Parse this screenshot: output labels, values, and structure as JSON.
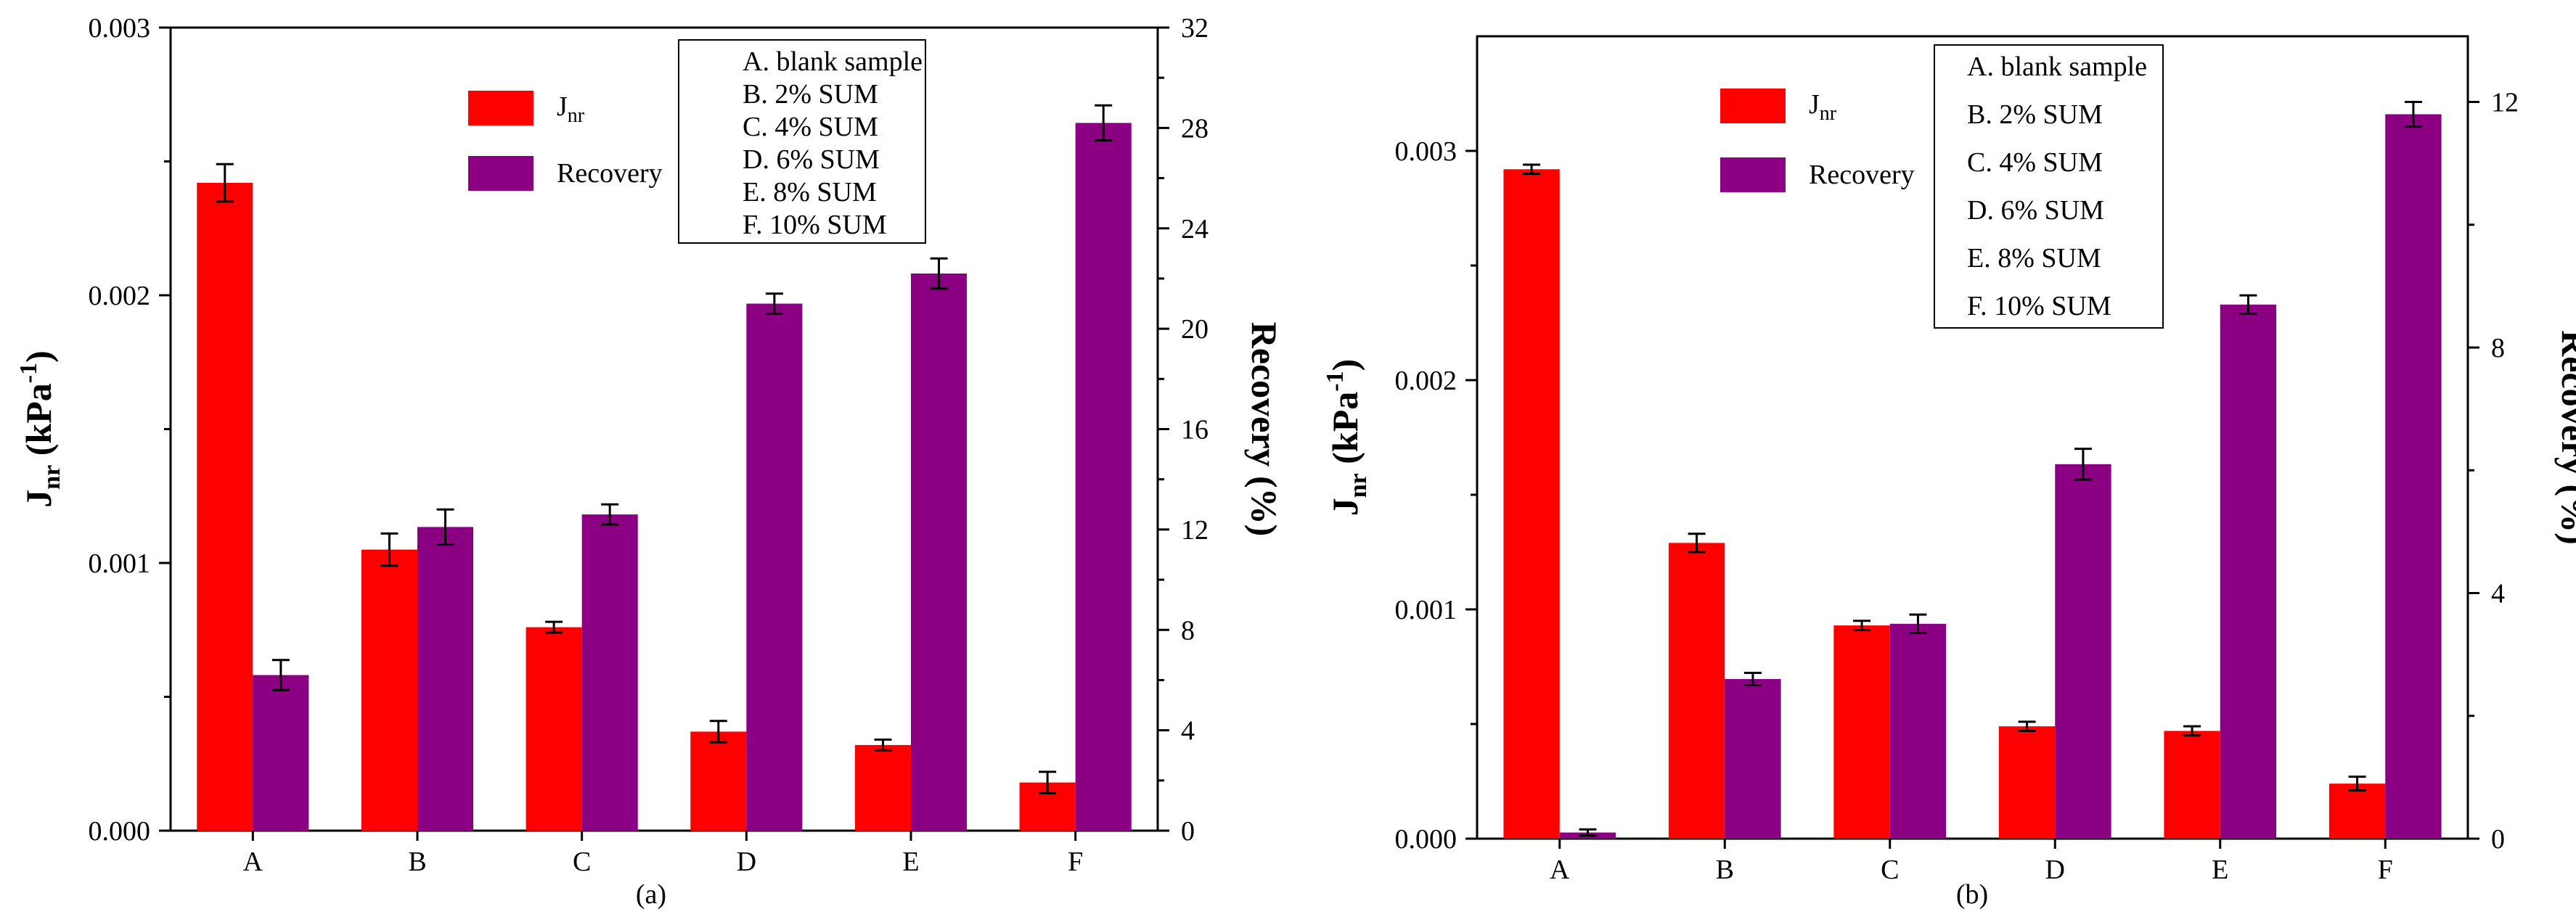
{
  "colors": {
    "jnr": "#ff0000",
    "recovery": "#8b0082",
    "axis": "#000000",
    "background": "#ffffff"
  },
  "series_labels": {
    "jnr_base": "J",
    "jnr_sub": "nr",
    "recovery": "Recovery"
  },
  "chart_data": [
    {
      "type": "bar",
      "caption": "(a)",
      "categories": [
        "A",
        "B",
        "C",
        "D",
        "E",
        "F"
      ],
      "category_key": [
        "A. blank sample",
        "B. 2%  SUM",
        "C. 4% SUM",
        "D. 6% SUM",
        "E. 8% SUM",
        "F. 10% SUM"
      ],
      "ylabel_left": {
        "base": "J",
        "sub": "nr",
        "mid": " (kPa",
        "sup": "-1",
        "end": ")"
      },
      "ylabel_right": "Recovery (%)",
      "ylim_left": [
        0,
        0.003
      ],
      "ylim_right": [
        0,
        32
      ],
      "yticks_left": [
        "0.000",
        "0.001",
        "0.002",
        "0.003"
      ],
      "yticks_right": [
        "0",
        "4",
        "8",
        "12",
        "16",
        "20",
        "24",
        "28",
        "32"
      ],
      "series": [
        {
          "name": "Jnr",
          "axis": "left",
          "values": [
            0.00242,
            0.00105,
            0.00076,
            0.00037,
            0.00032,
            0.00018
          ],
          "errors": [
            7e-05,
            6e-05,
            2e-05,
            4e-05,
            2e-05,
            4e-05
          ]
        },
        {
          "name": "Recovery",
          "axis": "right",
          "values": [
            6.2,
            12.1,
            12.6,
            21.0,
            22.2,
            28.2
          ],
          "errors": [
            0.6,
            0.7,
            0.4,
            0.4,
            0.6,
            0.7
          ]
        }
      ]
    },
    {
      "type": "bar",
      "caption": "(b)",
      "categories": [
        "A",
        "B",
        "C",
        "D",
        "E",
        "F"
      ],
      "category_key": [
        "A. blank sample",
        "B. 2% SUM",
        "C. 4% SUM",
        "D. 6% SUM",
        "E. 8% SUM",
        "F. 10% SUM"
      ],
      "ylabel_left": {
        "base": "J",
        "sub": "nr",
        "mid": " (kPa",
        "sup": "-1",
        "end": ")"
      },
      "ylabel_right": "Recovery (%)",
      "ylim_left": [
        0,
        0.0035
      ],
      "ylim_right": [
        0,
        13.07
      ],
      "yticks_left": [
        "0.000",
        "0.001",
        "0.002",
        "0.003"
      ],
      "yticks_right": [
        "0",
        "4",
        "8",
        "12"
      ],
      "series": [
        {
          "name": "Jnr",
          "axis": "left",
          "values": [
            0.00292,
            0.00129,
            0.00093,
            0.00049,
            0.00047,
            0.00024
          ],
          "errors": [
            2e-05,
            4e-05,
            2e-05,
            2e-05,
            2e-05,
            3e-05
          ]
        },
        {
          "name": "Recovery",
          "axis": "right",
          "values": [
            0.1,
            2.6,
            3.5,
            6.1,
            8.7,
            11.8
          ],
          "errors": [
            0.05,
            0.1,
            0.15,
            0.25,
            0.15,
            0.2
          ]
        }
      ]
    }
  ]
}
